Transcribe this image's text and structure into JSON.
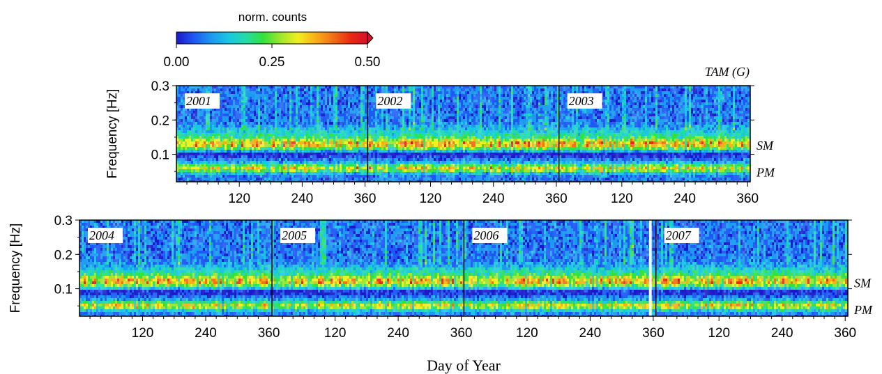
{
  "colorbar": {
    "label": "norm. counts",
    "ticks": [
      "0.00",
      "0.25",
      "0.50"
    ],
    "range": [
      0.0,
      0.5
    ],
    "colormap": [
      "#1a18c8",
      "#1f57f5",
      "#1c99f0",
      "#19c7e0",
      "#23dca5",
      "#33e13d",
      "#9fe62a",
      "#f2ef1f",
      "#f9b016",
      "#f27116",
      "#ea2a12",
      "#d80f2a"
    ],
    "extend": "max"
  },
  "station": "TAM (G)",
  "axes": {
    "ylabel": "Frequency [Hz]",
    "xlabel": "Day of Year",
    "yticks": [
      "0.3",
      "0.2",
      "0.1"
    ],
    "xticks": [
      "120",
      "240",
      "360"
    ]
  },
  "bands": [
    "SM",
    "PM"
  ],
  "chart_data": [
    {
      "type": "heatmap",
      "title": "TAM (G)",
      "xlabel": "Day of Year",
      "ylabel": "Frequency [Hz]",
      "xlim": [
        1,
        1095
      ],
      "ylim": [
        0.02,
        0.3
      ],
      "years": [
        "2001",
        "2002",
        "2003"
      ],
      "year_days": [
        365,
        365,
        365
      ],
      "xtick_values": [
        120,
        240,
        360
      ],
      "ytick_values": [
        0.1,
        0.2,
        0.3
      ],
      "colorbar_range": [
        0.0,
        0.5
      ],
      "bands": [
        {
          "name": "SM",
          "frequency_hz": 0.13
        },
        {
          "name": "PM",
          "frequency_hz": 0.06
        }
      ],
      "gaps": []
    },
    {
      "type": "heatmap",
      "xlabel": "Day of Year",
      "ylabel": "Frequency [Hz]",
      "xlim": [
        1,
        1461
      ],
      "ylim": [
        0.02,
        0.3
      ],
      "years": [
        "2004",
        "2005",
        "2006",
        "2007"
      ],
      "year_days": [
        366,
        365,
        365,
        365
      ],
      "xtick_values": [
        120,
        240,
        360
      ],
      "ytick_values": [
        0.1,
        0.2,
        0.3
      ],
      "colorbar_range": [
        0.0,
        0.5
      ],
      "bands": [
        {
          "name": "SM",
          "frequency_hz": 0.12
        },
        {
          "name": "PM",
          "frequency_hz": 0.05
        }
      ],
      "gaps": [
        {
          "year": "2006",
          "from_day": 352,
          "to_day": 357
        }
      ]
    }
  ]
}
